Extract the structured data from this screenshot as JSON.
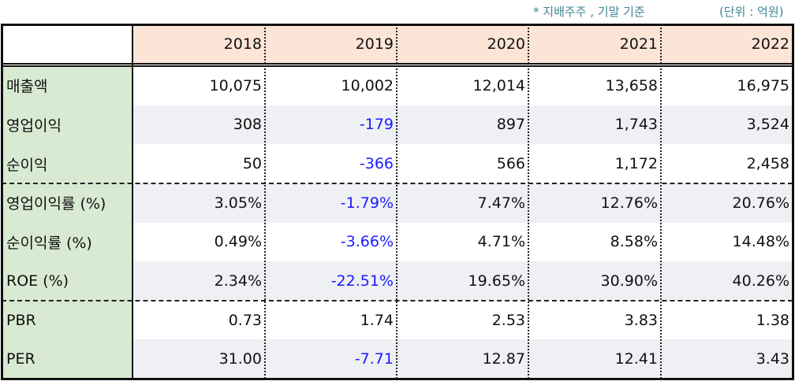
{
  "header": {
    "note": "* 지배주주 , 기말 기준",
    "unit": "(단위 : 억원)"
  },
  "table": {
    "columns": [
      "2018",
      "2019",
      "2020",
      "2021",
      "2022"
    ],
    "rows": [
      {
        "label": "매출액",
        "values": [
          "10,075",
          "10,002",
          "12,014",
          "13,658",
          "16,975"
        ]
      },
      {
        "label": "영업이익",
        "values": [
          "308",
          "-179",
          "897",
          "1,743",
          "3,524"
        ]
      },
      {
        "label": "순이익",
        "values": [
          "50",
          "-366",
          "566",
          "1,172",
          "2,458"
        ]
      },
      {
        "label": "영업이익률 (%)",
        "values": [
          "3.05%",
          "-1.79%",
          "7.47%",
          "12.76%",
          "20.76%"
        ]
      },
      {
        "label": "순이익률 (%)",
        "values": [
          "0.49%",
          "-3.66%",
          "4.71%",
          "8.58%",
          "14.48%"
        ]
      },
      {
        "label": "ROE (%)",
        "values": [
          "2.34%",
          "-22.51%",
          "19.65%",
          "30.90%",
          "40.26%"
        ]
      },
      {
        "label": "PBR",
        "values": [
          "0.73",
          "1.74",
          "2.53",
          "3.83",
          "1.38"
        ]
      },
      {
        "label": "PER",
        "values": [
          "31.00",
          "-7.71",
          "12.87",
          "12.41",
          "3.43"
        ]
      }
    ]
  }
}
